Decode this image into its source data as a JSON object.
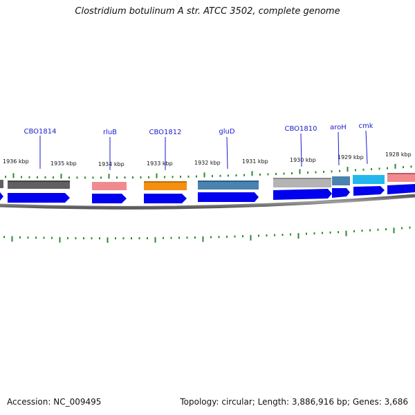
{
  "title": "Clostridium botulinum A str. ATCC 3502, complete genome",
  "footer": {
    "accession": "Accession: NC_009495",
    "topology": "Topology: circular; Length: 3,886,916 bp; Genes: 3,686"
  },
  "kbp_labels": [
    "1936 kbp",
    "1935 kbp",
    "1934 kbp",
    "1933 kbp",
    "1932 kbp",
    "1931 kbp",
    "1930 kbp",
    "1929 kbp",
    "1928 kbp"
  ],
  "gene_labels": [
    "CBO1814",
    "rluB",
    "CBO1812",
    "gluD",
    "CBO1810",
    "aroH",
    "cmk"
  ],
  "colors": {
    "backbone": "#8a8a8a",
    "tick": "#2a8a2a",
    "cds": "#0000ee",
    "gene_label": "#1a1acc",
    "dark_gray": "#606060",
    "light_gray": "#b4b4b4",
    "pink": "#f08a8e",
    "orange": "#f39010",
    "steel_blue": "#4a82b0",
    "cyan": "#22b8ee"
  }
}
